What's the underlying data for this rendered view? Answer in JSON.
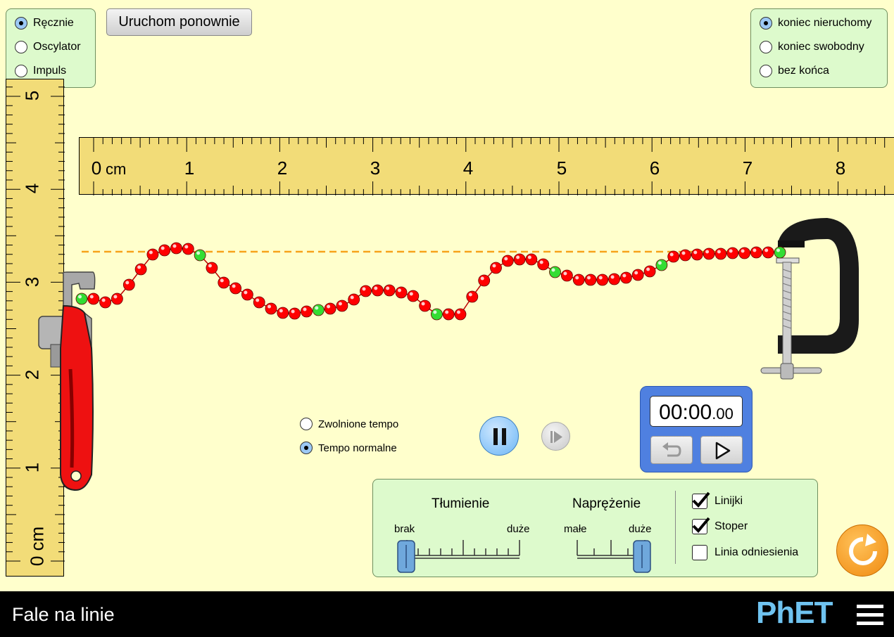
{
  "mode_panel": {
    "options": [
      {
        "label": "Ręcznie",
        "selected": true
      },
      {
        "label": "Oscylator",
        "selected": false
      },
      {
        "label": "Impuls",
        "selected": false
      }
    ]
  },
  "restart_button": {
    "label": "Uruchom ponownie"
  },
  "end_panel": {
    "options": [
      {
        "label": "koniec nieruchomy",
        "selected": true
      },
      {
        "label": "koniec swobodny",
        "selected": false
      },
      {
        "label": "bez końca",
        "selected": false
      }
    ]
  },
  "horizontal_ruler": {
    "unit_label": "cm",
    "labels": [
      "0",
      "1",
      "2",
      "3",
      "4",
      "5",
      "6",
      "7",
      "8"
    ]
  },
  "vertical_ruler": {
    "unit_label": "0 cm",
    "labels": [
      "1",
      "2",
      "3",
      "4",
      "5"
    ]
  },
  "speed_panel": {
    "options": [
      {
        "label": "Zwolnione tempo",
        "selected": false
      },
      {
        "label": "Tempo normalne",
        "selected": true
      }
    ]
  },
  "playback": {
    "pause_icon": "pause-icon",
    "step_icon": "step-forward-icon"
  },
  "stopwatch": {
    "time_main": "00:00",
    "time_fraction": ".00",
    "reset_icon": "reset-icon",
    "play_icon": "play-icon"
  },
  "controls_panel": {
    "damping": {
      "title": "Tłumienie",
      "min_label": "brak",
      "max_label": "duże",
      "value_fraction": 0.0
    },
    "tension": {
      "title": "Naprężenie",
      "min_label": "małe",
      "max_label": "duże",
      "value_fraction": 1.0
    },
    "checkboxes": [
      {
        "label": "Linijki",
        "checked": true
      },
      {
        "label": "Stoper",
        "checked": true
      },
      {
        "label": "Linia odniesienia",
        "checked": false
      }
    ]
  },
  "reset_all_icon": "reset-all-icon",
  "footer": {
    "title": "Fale na linie",
    "brand": "PhET",
    "menu_icon": "hamburger-menu-icon"
  },
  "colors": {
    "background": "#ffffcc",
    "panel": "#ddfacc",
    "ruler": "#f2dc78",
    "bead": "#ff0000",
    "bead_marker": "#33dd33",
    "reference_line": "#f7a21a",
    "stopwatch": "#4f80e0",
    "reset_all": "#f59a1b"
  }
}
